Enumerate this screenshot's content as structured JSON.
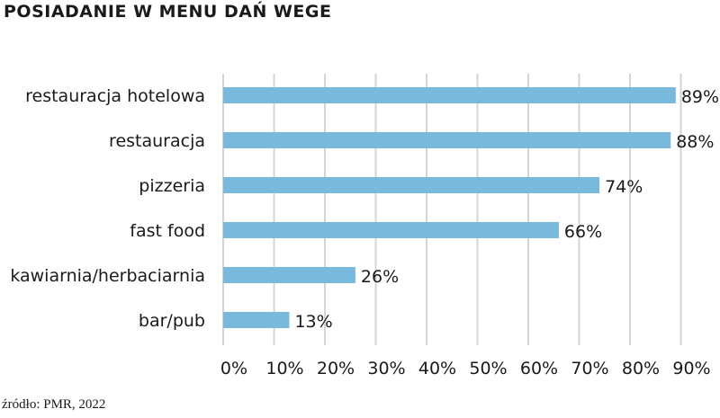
{
  "title": "POSIADANIE W MENU DAŃ WEGE",
  "source": "źródło: PMR, 2022",
  "chart_data": {
    "type": "bar",
    "orientation": "horizontal",
    "categories": [
      "restauracja hotelowa",
      "restauracja",
      "pizzeria",
      "fast food",
      "kawiarnia/herbaciarnia",
      "bar/pub"
    ],
    "values": [
      89,
      88,
      74,
      66,
      26,
      13
    ],
    "value_labels": [
      "89%",
      "88%",
      "74%",
      "66%",
      "26%",
      "13%"
    ],
    "xlim": [
      0,
      90
    ],
    "xticks": [
      0,
      10,
      20,
      30,
      40,
      50,
      60,
      70,
      80,
      90
    ],
    "xtick_labels": [
      "0%",
      "10%",
      "20%",
      "30%",
      "40%",
      "50%",
      "60%",
      "70%",
      "80%",
      "90%"
    ],
    "grid": true,
    "bar_color": "#79b9dc",
    "grid_color": "#d4d4d4"
  }
}
